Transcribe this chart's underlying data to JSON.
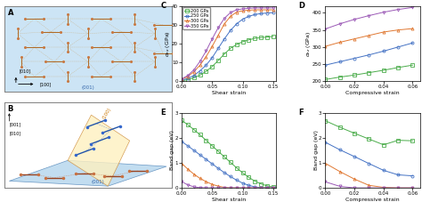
{
  "pressures": [
    "200 GPa",
    "250 GPa",
    "300 GPa",
    "350 GPa"
  ],
  "colors": [
    "#4aac4a",
    "#4472c4",
    "#e07832",
    "#9b59b6"
  ],
  "markers": [
    "s",
    "o",
    "^",
    "v"
  ],
  "C_shear_strain": [
    0.0,
    0.01,
    0.02,
    0.03,
    0.04,
    0.05,
    0.06,
    0.07,
    0.08,
    0.09,
    0.1,
    0.11,
    0.12,
    0.13,
    0.14,
    0.15
  ],
  "C_200": [
    0.3,
    0.8,
    1.8,
    3.2,
    5.2,
    7.8,
    11.0,
    14.5,
    17.5,
    19.5,
    21.0,
    22.0,
    22.8,
    23.2,
    23.5,
    23.8
  ],
  "C_250": [
    0.5,
    1.5,
    3.0,
    5.5,
    8.5,
    12.5,
    17.5,
    22.5,
    27.0,
    30.5,
    33.0,
    34.5,
    35.5,
    36.0,
    36.3,
    36.5
  ],
  "C_300": [
    1.0,
    2.5,
    5.0,
    8.5,
    13.0,
    18.5,
    24.5,
    30.5,
    34.5,
    36.8,
    37.5,
    37.8,
    38.0,
    38.0,
    38.0,
    38.0
  ],
  "C_350": [
    1.2,
    3.0,
    6.0,
    10.5,
    16.0,
    22.5,
    28.5,
    33.5,
    36.5,
    38.0,
    38.5,
    38.8,
    39.0,
    39.0,
    39.0,
    39.0
  ],
  "D_comp_strain": [
    0.0,
    0.01,
    0.02,
    0.03,
    0.04,
    0.05,
    0.06
  ],
  "D_200": [
    205,
    212,
    218,
    225,
    232,
    240,
    247
  ],
  "D_250": [
    247,
    257,
    267,
    277,
    288,
    300,
    312
  ],
  "D_300": [
    302,
    314,
    324,
    334,
    344,
    350,
    354
  ],
  "D_350": [
    353,
    368,
    381,
    392,
    402,
    410,
    416
  ],
  "E_shear_strain": [
    0.0,
    0.01,
    0.02,
    0.03,
    0.04,
    0.05,
    0.06,
    0.07,
    0.08,
    0.09,
    0.1,
    0.11,
    0.12,
    0.13,
    0.14,
    0.15
  ],
  "E_200": [
    2.7,
    2.52,
    2.33,
    2.12,
    1.9,
    1.68,
    1.46,
    1.24,
    1.02,
    0.8,
    0.6,
    0.42,
    0.27,
    0.16,
    0.08,
    0.03
  ],
  "E_250": [
    1.85,
    1.68,
    1.5,
    1.32,
    1.14,
    0.96,
    0.78,
    0.61,
    0.45,
    0.31,
    0.19,
    0.1,
    0.04,
    0.01,
    0.0,
    0.0
  ],
  "E_300": [
    0.98,
    0.75,
    0.55,
    0.38,
    0.25,
    0.14,
    0.07,
    0.02,
    0.0,
    0.0,
    0.0,
    0.0,
    0.0,
    0.0,
    0.0,
    0.0
  ],
  "E_350": [
    0.25,
    0.12,
    0.04,
    0.01,
    0.0,
    0.0,
    0.0,
    0.0,
    0.0,
    0.0,
    0.0,
    0.0,
    0.0,
    0.0,
    0.0,
    0.0
  ],
  "F_comp_strain": [
    0.0,
    0.01,
    0.02,
    0.03,
    0.04,
    0.05,
    0.06
  ],
  "F_200": [
    2.68,
    2.42,
    2.18,
    1.95,
    1.72,
    1.9,
    1.88
  ],
  "F_250": [
    1.82,
    1.52,
    1.25,
    0.97,
    0.7,
    0.52,
    0.48
  ],
  "F_300": [
    0.98,
    0.65,
    0.35,
    0.1,
    0.02,
    0.0,
    0.0
  ],
  "F_350": [
    0.24,
    0.06,
    0.0,
    0.0,
    0.0,
    0.0,
    0.0
  ],
  "C_ylabel": "$\\sigma_{zx}$ (GPa)",
  "D_ylabel": "$\\sigma_{zz}$ (GPa)",
  "E_ylabel": "Band gap (eV)",
  "F_ylabel": "Band gap (eV)",
  "C_xlabel": "Shear strain",
  "D_xlabel": "Compressive strain",
  "E_xlabel": "Shear strain",
  "F_xlabel": "Compressive strain",
  "C_ylim": [
    0,
    40
  ],
  "D_ylim": [
    200,
    420
  ],
  "E_ylim": [
    0,
    3.0
  ],
  "F_ylim": [
    0,
    3.0
  ],
  "C_xlim": [
    0.0,
    0.155
  ],
  "D_xlim": [
    0.0,
    0.065
  ],
  "E_xlim": [
    0.0,
    0.155
  ],
  "F_xlim": [
    0.0,
    0.065
  ],
  "bg_color_A": "#cce4f5",
  "bg_color_B_001": "#b8d8ee",
  "bg_color_B_100": "#fef3d0"
}
